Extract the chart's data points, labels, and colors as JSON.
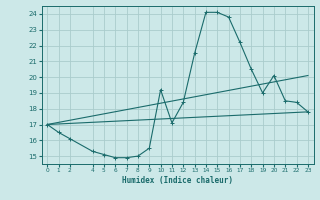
{
  "xlabel": "Humidex (Indice chaleur)",
  "bg_color": "#cce8e8",
  "grid_color": "#aacccc",
  "line_color": "#1a6b6b",
  "xlim": [
    -0.5,
    23.5
  ],
  "ylim": [
    14.5,
    24.5
  ],
  "xticks": [
    0,
    1,
    2,
    4,
    5,
    6,
    7,
    8,
    9,
    10,
    11,
    12,
    13,
    14,
    15,
    16,
    17,
    18,
    19,
    20,
    21,
    22,
    23
  ],
  "yticks": [
    15,
    16,
    17,
    18,
    19,
    20,
    21,
    22,
    23,
    24
  ],
  "line1_x": [
    0,
    1,
    2,
    4,
    5,
    6,
    7,
    8,
    9,
    10,
    11,
    12,
    13,
    14,
    15,
    16,
    17,
    18,
    19,
    20,
    21,
    22,
    23
  ],
  "line1_y": [
    17.0,
    16.5,
    16.1,
    15.3,
    15.1,
    14.9,
    14.9,
    15.0,
    15.5,
    19.2,
    17.1,
    18.4,
    21.5,
    24.1,
    24.1,
    23.8,
    22.2,
    20.5,
    19.0,
    20.1,
    18.5,
    18.4,
    17.8
  ],
  "line2_x": [
    0,
    23
  ],
  "line2_y": [
    17.0,
    20.1
  ],
  "line3_x": [
    0,
    23
  ],
  "line3_y": [
    17.0,
    17.8
  ]
}
